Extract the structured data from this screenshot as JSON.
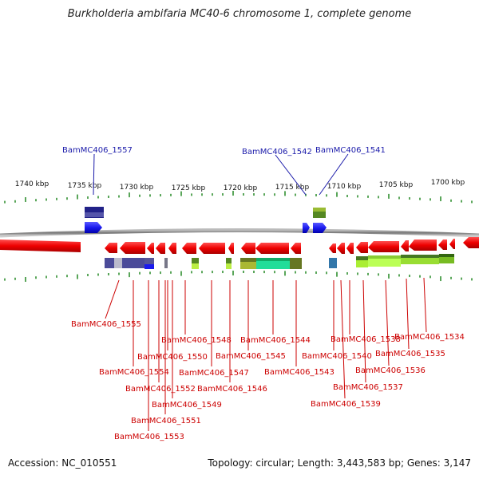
{
  "title": "Burkholderia ambifaria MC40-6 chromosome 1, complete genome",
  "accession": "Accession: NC_010551",
  "topology": "Topology: circular; Length: 3,443,583 bp; Genes: 3,147",
  "colors": {
    "gene_red": "#ee0000",
    "gene_blue": "#1a1aee",
    "label_red": "#cc0000",
    "label_blue": "#1a1aaa",
    "tick_green": "#228822",
    "backbone": "#888888"
  },
  "scale_labels": [
    "1740 kbp",
    "1735 kbp",
    "1730 kbp",
    "1725 kbp",
    "1720 kbp",
    "1715 kbp",
    "1710 kbp",
    "1705 kbp",
    "1700 kbp"
  ],
  "top_gene_labels": [
    "BamMC406_1557",
    "BamMC406_1542",
    "BamMC406_1541"
  ],
  "bottom_gene_labels": [
    "BamMC406_1555",
    "BamMC406_1554",
    "BamMC406_1553",
    "BamMC406_1552",
    "BamMC406_1551",
    "BamMC406_1550",
    "BamMC406_1549",
    "BamMC406_1548",
    "BamMC406_1547",
    "BamMC406_1546",
    "BamMC406_1545",
    "BamMC406_1544",
    "BamMC406_1543",
    "BamMC406_1540",
    "BamMC406_1539",
    "BamMC406_1538",
    "BamMC406_1537",
    "BamMC406_1536",
    "BamMC406_1535",
    "BamMC406_1534"
  ]
}
